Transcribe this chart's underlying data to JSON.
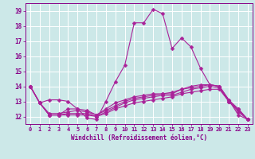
{
  "xlabel": "Windchill (Refroidissement éolien,°C)",
  "x": [
    0,
    1,
    2,
    3,
    4,
    5,
    6,
    7,
    8,
    9,
    10,
    11,
    12,
    13,
    14,
    15,
    16,
    17,
    18,
    19,
    20,
    21,
    22,
    23
  ],
  "series": [
    [
      14.0,
      12.9,
      13.1,
      13.1,
      13.0,
      12.5,
      11.9,
      11.8,
      13.0,
      14.3,
      15.4,
      18.2,
      18.2,
      19.1,
      18.8,
      16.5,
      17.2,
      16.6,
      15.2,
      14.1,
      14.0,
      13.1,
      12.1,
      11.8
    ],
    [
      14.0,
      12.9,
      12.1,
      12.1,
      12.5,
      12.5,
      12.4,
      12.1,
      12.5,
      12.9,
      13.1,
      13.3,
      13.4,
      13.5,
      13.5,
      13.6,
      13.8,
      14.0,
      14.1,
      14.1,
      14.0,
      13.1,
      12.5,
      11.8
    ],
    [
      14.0,
      12.9,
      12.1,
      12.1,
      12.1,
      12.1,
      12.1,
      12.0,
      12.2,
      12.5,
      12.7,
      12.9,
      13.0,
      13.1,
      13.2,
      13.3,
      13.5,
      13.6,
      13.7,
      13.8,
      13.8,
      13.0,
      12.3,
      11.8
    ],
    [
      14.0,
      12.9,
      12.1,
      12.1,
      12.2,
      12.2,
      12.2,
      12.0,
      12.3,
      12.6,
      12.9,
      13.1,
      13.2,
      13.3,
      13.4,
      13.4,
      13.6,
      13.8,
      13.9,
      14.0,
      13.9,
      13.0,
      12.4,
      11.8
    ],
    [
      14.0,
      12.9,
      12.2,
      12.2,
      12.3,
      12.4,
      12.3,
      12.1,
      12.4,
      12.7,
      13.0,
      13.2,
      13.3,
      13.4,
      13.5,
      13.5,
      13.8,
      13.9,
      14.0,
      14.1,
      14.0,
      13.0,
      12.5,
      11.8
    ]
  ],
  "line_color": "#aa2299",
  "marker": "D",
  "markersize": 2.5,
  "linewidth": 0.8,
  "ylim": [
    11.5,
    19.5
  ],
  "xlim": [
    -0.5,
    23.5
  ],
  "yticks": [
    12,
    13,
    14,
    15,
    16,
    17,
    18,
    19
  ],
  "xticks": [
    0,
    1,
    2,
    3,
    4,
    5,
    6,
    7,
    8,
    9,
    10,
    11,
    12,
    13,
    14,
    15,
    16,
    17,
    18,
    19,
    20,
    21,
    22,
    23
  ],
  "bg_color": "#cce8e8",
  "grid_color": "#ffffff",
  "tick_color": "#880088",
  "label_color": "#880088"
}
